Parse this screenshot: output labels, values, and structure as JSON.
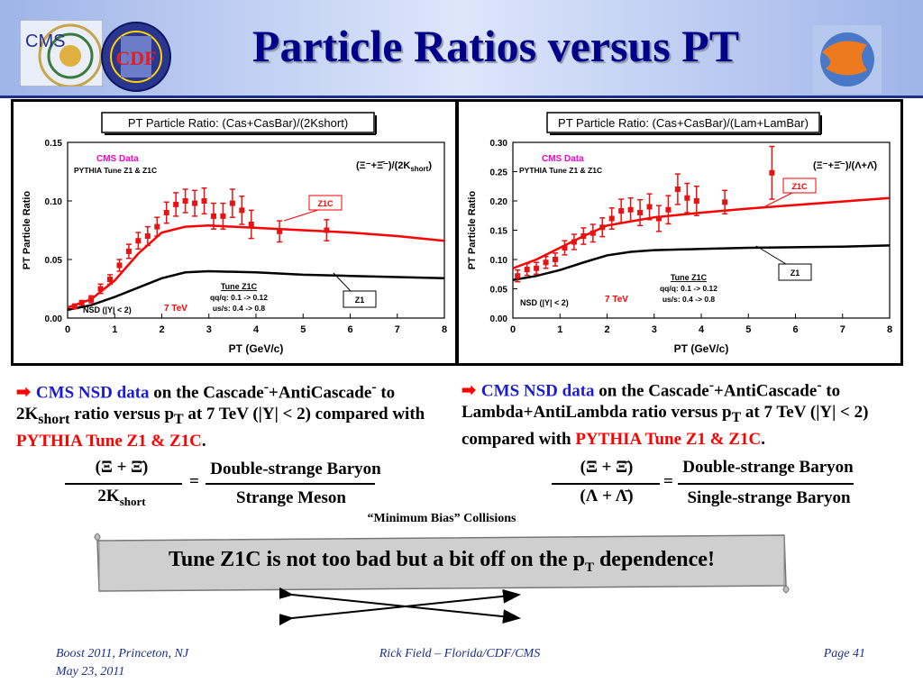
{
  "slide": {
    "title": "Particle Ratios versus PT",
    "logos": {
      "left1": "CMS",
      "left2": "CDF"
    }
  },
  "colors": {
    "header": "#9fb4e8",
    "title": "#00008b",
    "data": "#e81212",
    "z1c": "#ff0000",
    "z1": "#000000",
    "cms_label": "#ff00cc"
  },
  "chart_data": [
    {
      "type": "line",
      "title": "PT Particle Ratio: (Cas+CasBar)/(2Kshort)",
      "xlabel": "PT (GeV/c)",
      "ylabel": "PT Particle Ratio",
      "xlim": [
        0,
        8
      ],
      "ylim": [
        0,
        0.15
      ],
      "xticks": [
        "0",
        "1",
        "2",
        "3",
        "4",
        "5",
        "6",
        "7",
        "8"
      ],
      "yticks": [
        "0.00",
        "0.05",
        "0.10",
        "0.15"
      ],
      "legend_cms": "CMS Data",
      "legend_pythia": "PYTHIA Tune Z1 & Z1C",
      "ratio_label": "(Ξ⁻+Ξ̄⁻)/(2K",
      "ratio_sub": "short",
      "ratio_end": ")",
      "z1c_label": "Z1C",
      "z1_label": "Z1",
      "tune_title": "Tune Z1C",
      "tune_line1": "qq/q: 0.1 -> 0.12",
      "tune_line2": "us/s: 0.4 -> 0.8",
      "nsd_label": "NSD (|Y| < 2)",
      "energy_label": "7 TeV",
      "series": [
        {
          "name": "CMS Data",
          "kind": "points",
          "x": [
            0.15,
            0.3,
            0.5,
            0.7,
            0.9,
            1.1,
            1.3,
            1.5,
            1.7,
            1.9,
            2.1,
            2.3,
            2.5,
            2.7,
            2.9,
            3.1,
            3.3,
            3.5,
            3.7,
            3.9,
            4.5,
            5.5
          ],
          "y": [
            0.01,
            0.013,
            0.016,
            0.025,
            0.033,
            0.045,
            0.057,
            0.066,
            0.07,
            0.078,
            0.09,
            0.097,
            0.1,
            0.098,
            0.1,
            0.087,
            0.087,
            0.098,
            0.092,
            0.08,
            0.074,
            0.075
          ],
          "err": [
            0.002,
            0.002,
            0.003,
            0.004,
            0.004,
            0.005,
            0.006,
            0.007,
            0.008,
            0.008,
            0.009,
            0.01,
            0.01,
            0.011,
            0.011,
            0.011,
            0.011,
            0.012,
            0.012,
            0.012,
            0.009,
            0.009
          ]
        },
        {
          "name": "Z1C",
          "kind": "line",
          "x": [
            0,
            0.5,
            1,
            1.5,
            2,
            2.5,
            3,
            4,
            5,
            6,
            7,
            8
          ],
          "y": [
            0.009,
            0.016,
            0.032,
            0.055,
            0.073,
            0.078,
            0.079,
            0.077,
            0.075,
            0.073,
            0.07,
            0.066
          ]
        },
        {
          "name": "Z1",
          "kind": "line",
          "x": [
            0,
            0.5,
            1,
            1.5,
            2,
            2.5,
            3,
            4,
            5,
            6,
            7,
            8
          ],
          "y": [
            0.007,
            0.011,
            0.018,
            0.026,
            0.034,
            0.039,
            0.04,
            0.039,
            0.037,
            0.036,
            0.035,
            0.034
          ]
        }
      ]
    },
    {
      "type": "line",
      "title": "PT Particle Ratio: (Cas+CasBar)/(Lam+LamBar)",
      "xlabel": "PT (GeV/c)",
      "ylabel": "PT Particle Ratio",
      "xlim": [
        0,
        8
      ],
      "ylim": [
        0,
        0.3
      ],
      "xticks": [
        "0",
        "1",
        "2",
        "3",
        "4",
        "5",
        "6",
        "7",
        "8"
      ],
      "yticks": [
        "0.00",
        "0.05",
        "0.10",
        "0.15",
        "0.20",
        "0.25",
        "0.30"
      ],
      "legend_cms": "CMS Data",
      "legend_pythia": "PYTHIA Tune Z1 & Z1C",
      "ratio_label": "(Ξ⁻+Ξ̄⁻)/(Λ+Λ̄)",
      "ratio_sub": "",
      "ratio_end": "",
      "z1c_label": "Z1C",
      "z1_label": "Z1",
      "tune_title": "Tune Z1C",
      "tune_line1": "qq/q: 0.1 -> 0.12",
      "tune_line2": "us/s: 0.4 -> 0.8",
      "nsd_label": "NSD (|Y| < 2)",
      "energy_label": "7 TeV",
      "series": [
        {
          "name": "CMS Data",
          "kind": "points",
          "x": [
            0.1,
            0.3,
            0.5,
            0.7,
            0.9,
            1.1,
            1.3,
            1.5,
            1.7,
            1.9,
            2.1,
            2.3,
            2.5,
            2.7,
            2.9,
            3.1,
            3.3,
            3.5,
            3.7,
            3.9,
            4.5,
            5.5
          ],
          "y": [
            0.072,
            0.083,
            0.085,
            0.095,
            0.1,
            0.12,
            0.13,
            0.14,
            0.145,
            0.155,
            0.17,
            0.183,
            0.185,
            0.18,
            0.19,
            0.17,
            0.185,
            0.22,
            0.205,
            0.2,
            0.198,
            0.248
          ],
          "err": [
            0.01,
            0.01,
            0.01,
            0.01,
            0.011,
            0.012,
            0.013,
            0.014,
            0.015,
            0.016,
            0.018,
            0.02,
            0.02,
            0.022,
            0.022,
            0.022,
            0.024,
            0.026,
            0.025,
            0.025,
            0.02,
            0.045
          ]
        },
        {
          "name": "Z1C",
          "kind": "line",
          "x": [
            0,
            0.5,
            1,
            1.5,
            2,
            2.5,
            3,
            4,
            5,
            6,
            7,
            8
          ],
          "y": [
            0.085,
            0.1,
            0.12,
            0.14,
            0.158,
            0.165,
            0.172,
            0.18,
            0.187,
            0.193,
            0.199,
            0.205
          ]
        },
        {
          "name": "Z1",
          "kind": "line",
          "x": [
            0,
            0.5,
            1,
            1.5,
            2,
            2.5,
            3,
            4,
            5,
            6,
            7,
            8
          ],
          "y": [
            0.065,
            0.072,
            0.082,
            0.095,
            0.107,
            0.113,
            0.116,
            0.118,
            0.12,
            0.121,
            0.122,
            0.124
          ]
        }
      ]
    }
  ],
  "left_text": {
    "blue": "CMS NSD data",
    "b1": " on the Cascade",
    "sup1": "-",
    "b2": "+AntiCascade",
    "sup2": "-",
    "b3": " to 2K",
    "sub1": "short",
    "b4": " ratio versus p",
    "sub2": "T",
    "b5": " at 7 TeV (|Y| < 2) compared with ",
    "red": "PYTHIA Tune Z1 & Z1C",
    "end": "."
  },
  "right_text": {
    "blue": "CMS NSD data",
    "b1": " on the Cascade",
    "sup1": "-",
    "b2": "+AntiCascade",
    "sup2": "-",
    "b3": " to Lambda+AntiLambda ratio versus p",
    "sub1": "T",
    "b4": " at 7 TeV (|Y| < 2) compared with ",
    "red": "PYTHIA Tune Z1 & Z1C",
    "end": "."
  },
  "formula_left": {
    "num": "(Ξ + Ξ̄)",
    "den": "2K",
    "den_sub": "short",
    "eq": "=",
    "rnum": "Double-strange Baryon",
    "rden": "Strange Meson"
  },
  "formula_right": {
    "num": "(Ξ + Ξ̄)",
    "den": "(Λ + Λ̄)",
    "eq": "=",
    "rnum": "Double-strange Baryon",
    "rden": "Single-strange Baryon"
  },
  "min_bias": "“Minimum Bias” Collisions",
  "banner": {
    "text": "Tune Z1C is not too bad but a bit off on the p",
    "sub": "T",
    "end": " dependence!"
  },
  "footer": {
    "left1": "Boost 2011, Princeton, NJ",
    "left2": "May 23, 2011",
    "center": "Rick Field – Florida/CDF/CMS",
    "right": "Page 41"
  }
}
